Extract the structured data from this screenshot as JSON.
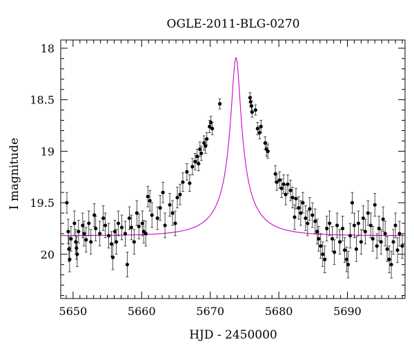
{
  "chart_data": {
    "type": "scatter",
    "title": "OGLE-2011-BLG-0270",
    "xlabel": "HJD - 2450000",
    "ylabel": "I magnitude",
    "xlim": [
      5648.2,
      5698.4
    ],
    "ylim": [
      20.43,
      17.92
    ],
    "y_inverted": true,
    "x_ticks": [
      {
        "value": 5650,
        "label": "5650"
      },
      {
        "value": 5660,
        "label": "5660"
      },
      {
        "value": 5670,
        "label": "5670"
      },
      {
        "value": 5680,
        "label": "5680"
      },
      {
        "value": 5690,
        "label": "5690"
      }
    ],
    "y_ticks": [
      {
        "value": 18.0,
        "label": "18"
      },
      {
        "value": 18.5,
        "label": "18.5"
      },
      {
        "value": 19.0,
        "label": "19"
      },
      {
        "value": 19.5,
        "label": "19.5"
      },
      {
        "value": 20.0,
        "label": "20"
      }
    ],
    "grid": false,
    "colors": {
      "points": "#000000",
      "model": "#cc00cc",
      "axes": "#000000"
    },
    "series": [
      {
        "kind": "points_with_errorbars",
        "points": [
          [
            5649.1,
            19.5,
            0.1
          ],
          [
            5649.3,
            19.78,
            0.12
          ],
          [
            5649.4,
            19.95,
            0.12
          ],
          [
            5649.5,
            20.05,
            0.12
          ],
          [
            5649.7,
            19.85,
            0.12
          ],
          [
            5650.2,
            19.7,
            0.12
          ],
          [
            5650.4,
            19.88,
            0.12
          ],
          [
            5650.5,
            19.94,
            0.11
          ],
          [
            5650.6,
            20.0,
            0.12
          ],
          [
            5650.8,
            19.78,
            0.11
          ],
          [
            5651.4,
            19.72,
            0.12
          ],
          [
            5651.6,
            19.8,
            0.12
          ],
          [
            5651.9,
            19.86,
            0.12
          ],
          [
            5652.3,
            19.7,
            0.12
          ],
          [
            5652.6,
            19.88,
            0.12
          ],
          [
            5653.1,
            19.62,
            0.11
          ],
          [
            5653.3,
            19.75,
            0.12
          ],
          [
            5653.9,
            19.8,
            0.12
          ],
          [
            5654.4,
            19.65,
            0.12
          ],
          [
            5654.7,
            19.72,
            0.12
          ],
          [
            5655.2,
            19.82,
            0.12
          ],
          [
            5655.6,
            19.9,
            0.12
          ],
          [
            5655.8,
            20.03,
            0.12
          ],
          [
            5656.1,
            19.78,
            0.11
          ],
          [
            5656.3,
            19.88,
            0.12
          ],
          [
            5656.6,
            19.7,
            0.12
          ],
          [
            5657.1,
            19.74,
            0.12
          ],
          [
            5657.6,
            19.8,
            0.12
          ],
          [
            5657.9,
            20.1,
            0.12
          ],
          [
            5658.2,
            19.65,
            0.11
          ],
          [
            5658.5,
            19.74,
            0.12
          ],
          [
            5658.9,
            19.88,
            0.12
          ],
          [
            5659.3,
            19.6,
            0.12
          ],
          [
            5659.6,
            19.73,
            0.12
          ],
          [
            5660.1,
            19.7,
            0.12
          ],
          [
            5660.3,
            19.78,
            0.11
          ],
          [
            5660.6,
            19.8,
            0.12
          ],
          [
            5660.9,
            19.44,
            0.1
          ],
          [
            5661.2,
            19.48,
            0.1
          ],
          [
            5661.5,
            19.62,
            0.12
          ],
          [
            5662.3,
            19.65,
            0.11
          ],
          [
            5662.7,
            19.55,
            0.12
          ],
          [
            5663.1,
            19.4,
            0.1
          ],
          [
            5663.4,
            19.72,
            0.12
          ],
          [
            5664.1,
            19.52,
            0.11
          ],
          [
            5664.5,
            19.6,
            0.12
          ],
          [
            5664.9,
            19.7,
            0.12
          ],
          [
            5665.2,
            19.45,
            0.1
          ],
          [
            5665.6,
            19.42,
            0.1
          ],
          [
            5666.0,
            19.3,
            0.09
          ],
          [
            5666.6,
            19.2,
            0.08
          ],
          [
            5667.0,
            19.31,
            0.08
          ],
          [
            5667.4,
            19.15,
            0.08
          ],
          [
            5667.8,
            19.1,
            0.08
          ],
          [
            5668.1,
            19.05,
            0.07
          ],
          [
            5668.3,
            19.12,
            0.07
          ],
          [
            5668.5,
            18.98,
            0.07
          ],
          [
            5668.7,
            19.02,
            0.07
          ],
          [
            5669.1,
            18.92,
            0.07
          ],
          [
            5669.3,
            18.95,
            0.07
          ],
          [
            5669.5,
            18.88,
            0.06
          ],
          [
            5669.9,
            18.76,
            0.06
          ],
          [
            5670.1,
            18.72,
            0.06
          ],
          [
            5670.3,
            18.78,
            0.06
          ],
          [
            5671.4,
            18.54,
            0.05
          ],
          [
            5675.8,
            18.48,
            0.05
          ],
          [
            5675.9,
            18.52,
            0.05
          ],
          [
            5676.0,
            18.56,
            0.05
          ],
          [
            5676.1,
            18.62,
            0.05
          ],
          [
            5676.6,
            18.6,
            0.05
          ],
          [
            5676.9,
            18.78,
            0.06
          ],
          [
            5677.2,
            18.82,
            0.06
          ],
          [
            5677.4,
            18.76,
            0.06
          ],
          [
            5678.0,
            18.92,
            0.06
          ],
          [
            5678.2,
            18.98,
            0.07
          ],
          [
            5678.4,
            19.0,
            0.07
          ],
          [
            5679.5,
            19.22,
            0.08
          ],
          [
            5679.7,
            19.3,
            0.08
          ],
          [
            5680.1,
            19.28,
            0.08
          ],
          [
            5680.4,
            19.36,
            0.09
          ],
          [
            5680.7,
            19.32,
            0.09
          ],
          [
            5681.0,
            19.42,
            0.1
          ],
          [
            5681.3,
            19.32,
            0.09
          ],
          [
            5681.7,
            19.38,
            0.1
          ],
          [
            5682.0,
            19.45,
            0.1
          ],
          [
            5682.3,
            19.64,
            0.12
          ],
          [
            5682.5,
            19.46,
            0.1
          ],
          [
            5682.9,
            19.55,
            0.11
          ],
          [
            5683.2,
            19.6,
            0.12
          ],
          [
            5683.5,
            19.5,
            0.1
          ],
          [
            5683.9,
            19.65,
            0.12
          ],
          [
            5684.2,
            19.7,
            0.12
          ],
          [
            5684.5,
            19.56,
            0.11
          ],
          [
            5684.9,
            19.62,
            0.12
          ],
          [
            5685.3,
            19.68,
            0.12
          ],
          [
            5685.6,
            19.78,
            0.12
          ],
          [
            5685.8,
            19.85,
            0.12
          ],
          [
            5686.1,
            19.92,
            0.12
          ],
          [
            5686.4,
            20.0,
            0.12
          ],
          [
            5686.7,
            20.05,
            0.13
          ],
          [
            5687.0,
            19.75,
            0.12
          ],
          [
            5687.4,
            19.7,
            0.12
          ],
          [
            5687.8,
            19.85,
            0.12
          ],
          [
            5688.1,
            19.98,
            0.12
          ],
          [
            5688.5,
            19.72,
            0.12
          ],
          [
            5688.9,
            19.88,
            0.12
          ],
          [
            5689.3,
            19.75,
            0.12
          ],
          [
            5689.6,
            19.96,
            0.12
          ],
          [
            5689.9,
            20.05,
            0.12
          ],
          [
            5690.1,
            20.1,
            0.13
          ],
          [
            5690.4,
            19.82,
            0.12
          ],
          [
            5690.7,
            19.5,
            0.1
          ],
          [
            5691.0,
            19.72,
            0.12
          ],
          [
            5691.3,
            19.95,
            0.12
          ],
          [
            5691.6,
            19.7,
            0.12
          ],
          [
            5692.0,
            19.88,
            0.12
          ],
          [
            5692.3,
            19.65,
            0.12
          ],
          [
            5692.6,
            19.78,
            0.12
          ],
          [
            5693.0,
            19.6,
            0.12
          ],
          [
            5693.4,
            19.72,
            0.12
          ],
          [
            5693.7,
            19.85,
            0.12
          ],
          [
            5694.0,
            19.52,
            0.11
          ],
          [
            5694.3,
            19.92,
            0.12
          ],
          [
            5694.6,
            19.75,
            0.12
          ],
          [
            5694.9,
            19.88,
            0.12
          ],
          [
            5695.2,
            19.66,
            0.12
          ],
          [
            5695.5,
            19.8,
            0.12
          ],
          [
            5695.8,
            19.95,
            0.12
          ],
          [
            5696.1,
            20.05,
            0.13
          ],
          [
            5696.4,
            20.1,
            0.13
          ],
          [
            5696.7,
            19.88,
            0.12
          ],
          [
            5697.0,
            19.72,
            0.12
          ],
          [
            5697.3,
            19.96,
            0.12
          ],
          [
            5697.6,
            19.8,
            0.12
          ],
          [
            5698.0,
            19.92,
            0.12
          ]
        ]
      },
      {
        "kind": "model_curve",
        "model": {
          "t0": 5673.75,
          "baseline": 19.82,
          "peak": 18.09,
          "tE": 6.2,
          "u0": 0.12
        }
      }
    ]
  }
}
